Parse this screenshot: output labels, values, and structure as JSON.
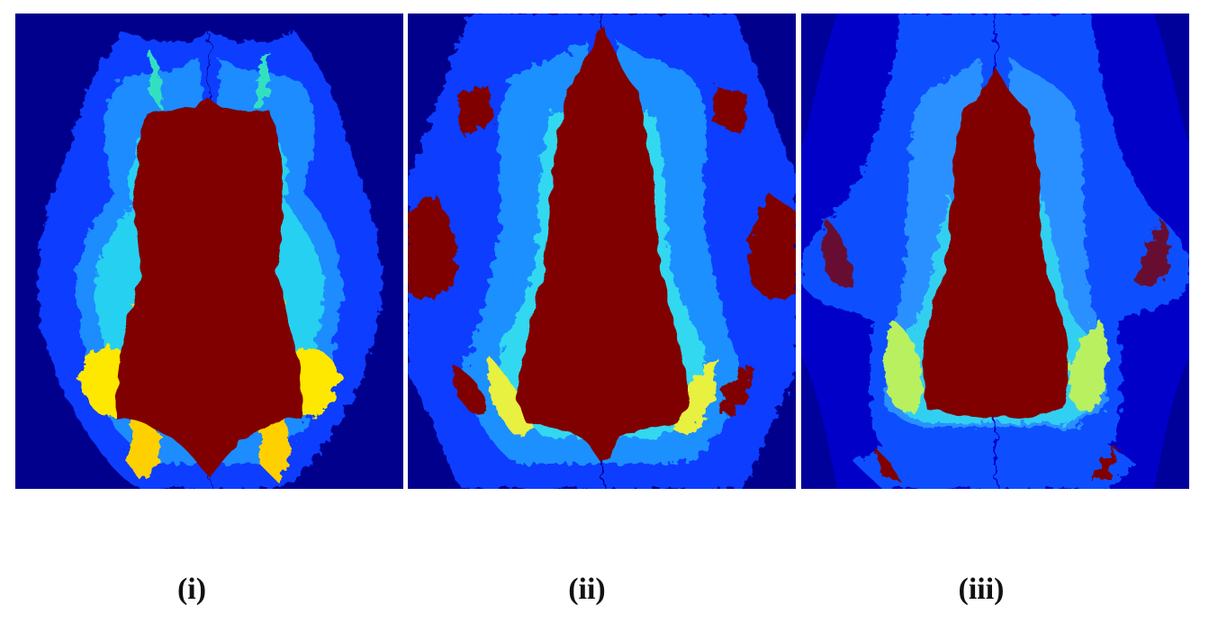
{
  "panels": [
    {
      "label": "(i)"
    },
    {
      "label": "(ii)"
    },
    {
      "label": "(iii)"
    }
  ]
}
